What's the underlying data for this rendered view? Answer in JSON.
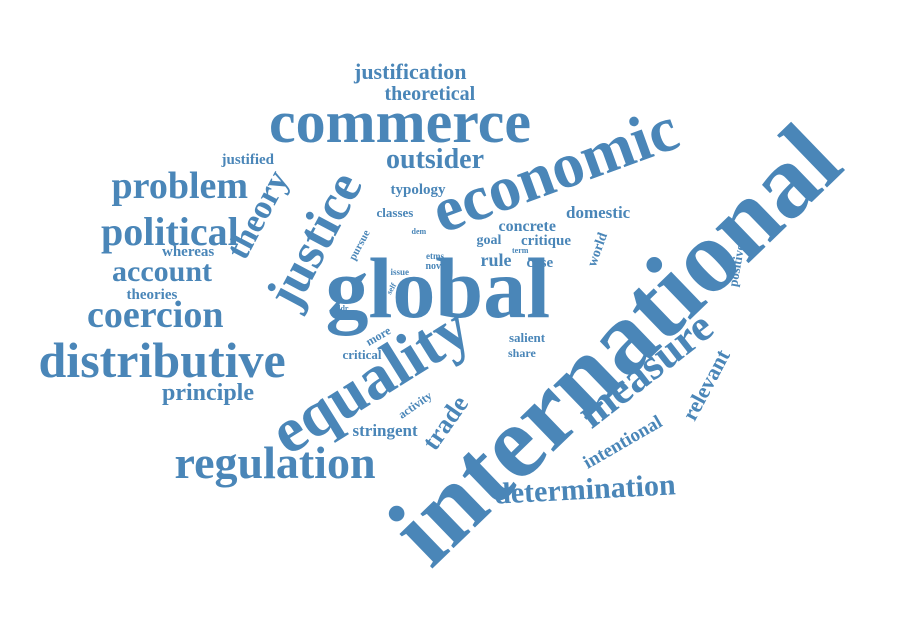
{
  "colors": {
    "word": "#4a86b8",
    "background": "#ffffff"
  },
  "words": {
    "international": "international",
    "global": "global",
    "equality": "equality",
    "economic": "economic",
    "commerce": "commerce",
    "justice": "justice",
    "distributive": "distributive",
    "regulation": "regulation",
    "measure": "measure",
    "political": "political",
    "problem": "problem",
    "coercion": "coercion",
    "account": "account",
    "theory": "theory",
    "outsider": "outsider",
    "determination": "determination",
    "trade": "trade",
    "principle": "principle",
    "justification": "justification",
    "theoretical": "theoretical",
    "relevant": "relevant",
    "intentional": "intentional",
    "stringent": "stringent",
    "domestic": "domestic",
    "concrete": "concrete",
    "typology": "typology",
    "classes": "classes",
    "whereas": "whereas",
    "theories": "theories",
    "justified": "justified",
    "critique": "critique",
    "rule": "rule",
    "case": "case",
    "goal": "goal",
    "world": "world",
    "positive": "positive",
    "salient": "salient",
    "share": "share",
    "critical": "critical",
    "more": "more",
    "activity": "activity",
    "pursue": "pursue",
    "issue": "issue",
    "novel": "novel",
    "etms": "etms",
    "term": "term",
    "dem": "dem",
    "self": "self",
    "addr": "addr"
  }
}
